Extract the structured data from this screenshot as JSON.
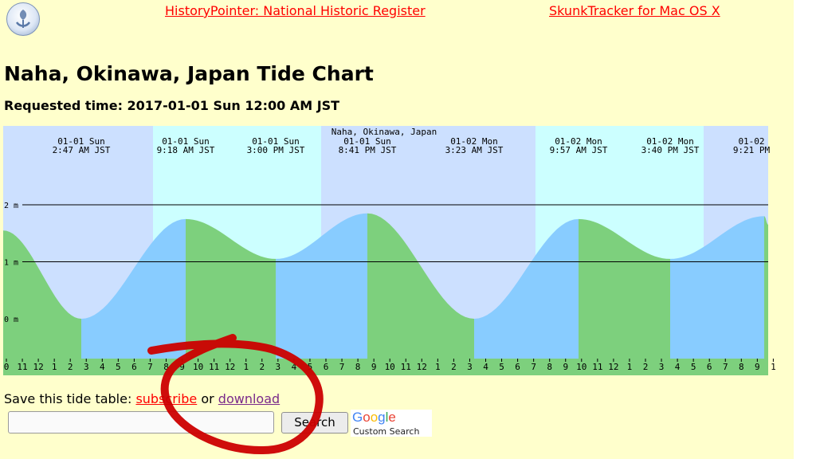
{
  "header": {
    "logo_icon": "historypointer-logo-icon",
    "link_history": "HistoryPointer: National Historic Register",
    "link_skunk": "SkunkTracker for Mac OS X"
  },
  "title": "Naha, Okinawa, Japan Tide Chart",
  "requested_time": "Requested time: 2017-01-01 Sun 12:00 AM JST",
  "chart_data": {
    "type": "area",
    "title": "Naha, Okinawa, Japan",
    "y_unit": "m",
    "ylim": [
      -0.9,
      3.3
    ],
    "y_ticks": [
      {
        "value": 2,
        "label": "2 m"
      },
      {
        "value": 1,
        "label": "1 m"
      },
      {
        "value": 0,
        "label": "0 m"
      }
    ],
    "hour_labels": [
      "0",
      "11",
      "12",
      "1",
      "2",
      "3",
      "4",
      "5",
      "6",
      "7",
      "8",
      "9",
      "10",
      "11",
      "12",
      "1",
      "2",
      "3",
      "4",
      "5",
      "6",
      "7",
      "8",
      "9",
      "10",
      "11",
      "12",
      "1",
      "2",
      "3",
      "4",
      "5",
      "6",
      "7",
      "8",
      "9",
      "10",
      "11",
      "12",
      "1",
      "2",
      "3",
      "4",
      "5",
      "6",
      "7",
      "8",
      "9",
      "1"
    ],
    "extremes": [
      {
        "date": "01-01 Sun",
        "time": "2:47 AM JST",
        "height": 0.0
      },
      {
        "date": "01-01 Sun",
        "time": "9:18 AM JST",
        "height": 1.75
      },
      {
        "date": "01-01 Sun",
        "time": "3:00 PM JST",
        "height": 1.05
      },
      {
        "date": "01-01 Sun",
        "time": "8:41 PM JST",
        "height": 1.85
      },
      {
        "date": "01-02 Mon",
        "time": "3:23 AM JST",
        "height": 0.0
      },
      {
        "date": "01-02 Mon",
        "time": "9:57 AM JST",
        "height": 1.75
      },
      {
        "date": "01-02 Mon",
        "time": "3:40 PM JST",
        "height": 1.05
      },
      {
        "date": "01-02",
        "time": "9:21 PM",
        "height": 1.8
      }
    ],
    "colors": {
      "night_sky": "#cce0ff",
      "day_sky": "#ccffff",
      "rising": "#88ccff",
      "falling": "#7dd07d",
      "axis_strip": "#ffffff"
    }
  },
  "save_line": {
    "prefix": "Save this tide table: ",
    "subscribe": "subscribe",
    "or": " or ",
    "download": "download"
  },
  "search": {
    "value": "",
    "button_label": "Search",
    "google_letters": [
      {
        "ch": "G",
        "color": "#4285f4"
      },
      {
        "ch": "o",
        "color": "#ea4335"
      },
      {
        "ch": "o",
        "color": "#fbbc05"
      },
      {
        "ch": "g",
        "color": "#4285f4"
      },
      {
        "ch": "l",
        "color": "#34a853"
      },
      {
        "ch": "e",
        "color": "#ea4335"
      }
    ],
    "custom_search_label": "Custom Search"
  },
  "annotation": {
    "color": "#cc0000",
    "shape": "hand-drawn-circle"
  }
}
